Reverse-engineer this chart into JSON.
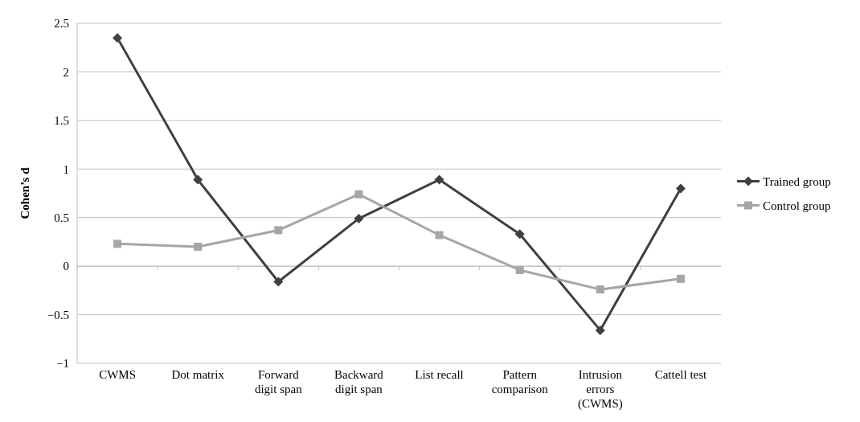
{
  "chart_data": {
    "type": "line",
    "ylabel": "Cohen’s d",
    "categories": [
      "CWMS",
      "Dot matrix",
      "Forward digit span",
      "Backward digit span",
      "List recall",
      "Pattern comparison",
      "Intrusion errors (CWMS)",
      "Cattell test"
    ],
    "series": [
      {
        "name": "Trained group",
        "color": "#404040",
        "marker": "diamond",
        "values": [
          2.35,
          0.89,
          -0.16,
          0.49,
          0.89,
          0.33,
          -0.66,
          0.8
        ]
      },
      {
        "name": "Control group",
        "color": "#a6a6a6",
        "marker": "square",
        "values": [
          0.23,
          0.2,
          0.37,
          0.74,
          0.32,
          -0.04,
          -0.24,
          -0.13
        ]
      }
    ],
    "ylim": [
      -1,
      2.5
    ],
    "yticks": [
      {
        "value": -1,
        "label": "−1"
      },
      {
        "value": -0.5,
        "label": "−0.5"
      },
      0,
      0.5,
      1,
      1.5,
      2,
      2.5
    ],
    "grid": "y",
    "legend": "right"
  }
}
